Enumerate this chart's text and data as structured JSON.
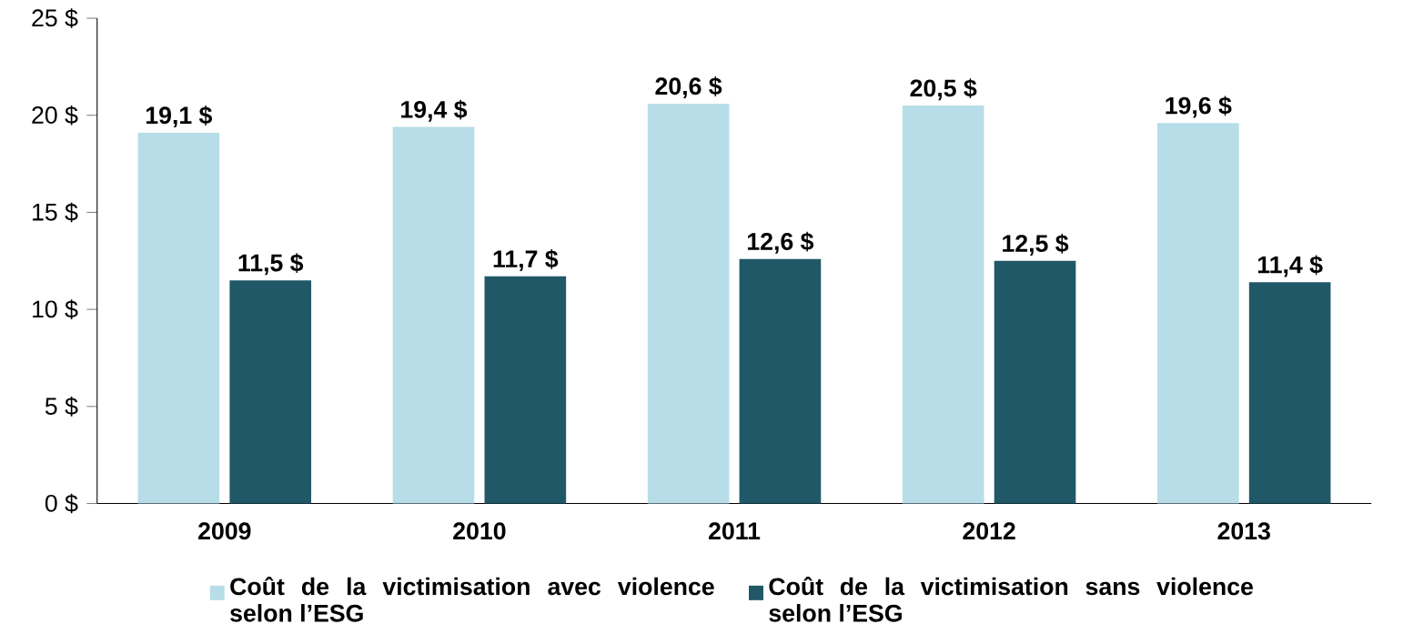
{
  "chart_data": {
    "type": "bar",
    "categories": [
      "2009",
      "2010",
      "2011",
      "2012",
      "2013"
    ],
    "series": [
      {
        "name": "Coût de la victimisation avec violence selon l’ESG",
        "color": "#b7dde8",
        "values": [
          19.1,
          19.4,
          20.6,
          20.5,
          19.6
        ],
        "value_labels": [
          "19,1 $",
          "19,4 $",
          "20,6 $",
          "20,5 $",
          "19,6 $"
        ]
      },
      {
        "name": "Coût de la victimisation sans violence selon l’ESG",
        "color": "#215868",
        "values": [
          11.5,
          11.7,
          12.6,
          12.5,
          11.4
        ],
        "value_labels": [
          "11,5 $",
          "11,7 $",
          "12,6 $",
          "12,5 $",
          "11,4 $"
        ]
      }
    ],
    "ylim": [
      0,
      25
    ],
    "yticks": [
      {
        "value": 0,
        "label": "0 $"
      },
      {
        "value": 5,
        "label": "5 $"
      },
      {
        "value": 10,
        "label": "10 $"
      },
      {
        "value": 15,
        "label": "15 $"
      },
      {
        "value": 20,
        "label": "20 $"
      },
      {
        "value": 25,
        "label": "25 $"
      }
    ],
    "grid": false,
    "legend": "bottom"
  }
}
